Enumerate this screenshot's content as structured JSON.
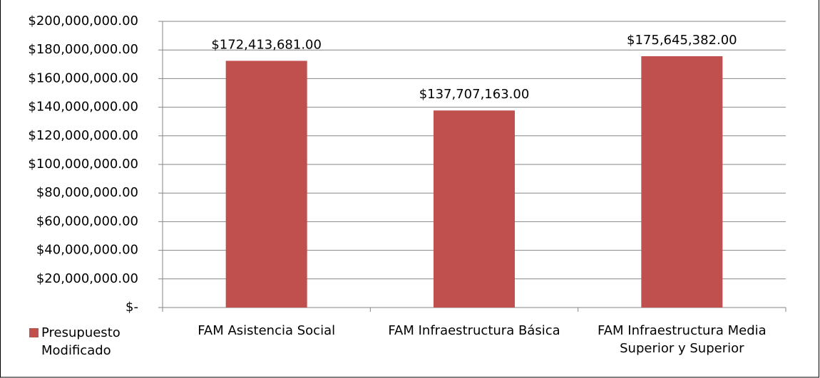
{
  "chart_data": {
    "type": "bar",
    "categories": [
      "FAM Asistencia Social",
      "FAM Infraestructura Básica",
      "FAM Infraestructura Media Superior y Superior"
    ],
    "series": [
      {
        "name": "Presupuesto Modificado",
        "color": "#c0504d",
        "values": [
          172413681,
          137707163,
          175645382
        ],
        "value_labels": [
          "$172,413,681.00",
          "$137,707,163.00",
          "$175,645,382.00"
        ]
      }
    ],
    "ylim": [
      0,
      200000000
    ],
    "yticks": [
      {
        "value": 0,
        "label": "$-"
      },
      {
        "value": 20000000,
        "label": "$20,000,000.00"
      },
      {
        "value": 40000000,
        "label": "$40,000,000.00"
      },
      {
        "value": 60000000,
        "label": "$60,000,000.00"
      },
      {
        "value": 80000000,
        "label": "$80,000,000.00"
      },
      {
        "value": 100000000,
        "label": "$100,000,000.00"
      },
      {
        "value": 120000000,
        "label": "$120,000,000.00"
      },
      {
        "value": 140000000,
        "label": "$140,000,000.00"
      },
      {
        "value": 160000000,
        "label": "$160,000,000.00"
      },
      {
        "value": 180000000,
        "label": "$180,000,000.00"
      },
      {
        "value": 200000000,
        "label": "$200,000,000.00"
      }
    ],
    "grid": true,
    "legend": "bottom-left"
  }
}
